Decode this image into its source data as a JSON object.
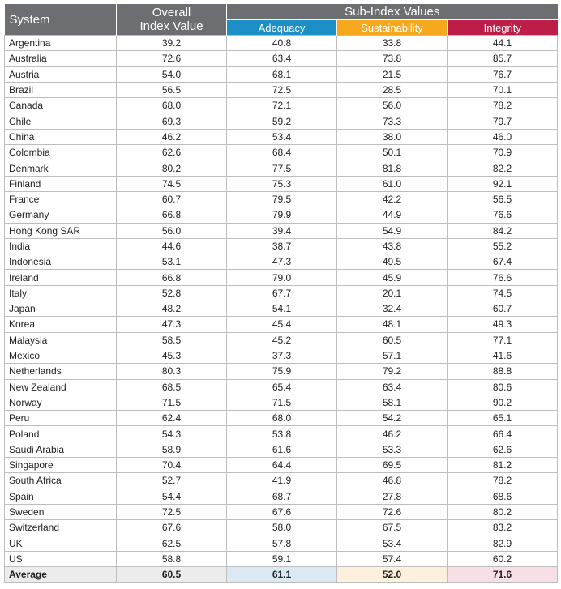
{
  "header": {
    "system": "System",
    "overall_line1": "Overall",
    "overall_line2": "Index Value",
    "subindex": "Sub-Index Values",
    "adequacy": "Adequacy",
    "sustainability": "Sustainability",
    "integrity": "Integrity"
  },
  "colors": {
    "header_gray": "#6d6e71",
    "adequacy": "#1b8fc6",
    "sustainability": "#f6a81c",
    "integrity": "#bd1e48"
  },
  "rows": [
    {
      "system": "Argentina",
      "overall": "39.2",
      "adequacy": "40.8",
      "sustainability": "33.8",
      "integrity": "44.1"
    },
    {
      "system": "Australia",
      "overall": "72.6",
      "adequacy": "63.4",
      "sustainability": "73.8",
      "integrity": "85.7"
    },
    {
      "system": "Austria",
      "overall": "54.0",
      "adequacy": "68.1",
      "sustainability": "21.5",
      "integrity": "76.7"
    },
    {
      "system": "Brazil",
      "overall": "56.5",
      "adequacy": "72.5",
      "sustainability": "28.5",
      "integrity": "70.1"
    },
    {
      "system": "Canada",
      "overall": "68.0",
      "adequacy": "72.1",
      "sustainability": "56.0",
      "integrity": "78.2"
    },
    {
      "system": "Chile",
      "overall": "69.3",
      "adequacy": "59.2",
      "sustainability": "73.3",
      "integrity": "79.7"
    },
    {
      "system": "China",
      "overall": "46.2",
      "adequacy": "53.4",
      "sustainability": "38.0",
      "integrity": "46.0"
    },
    {
      "system": "Colombia",
      "overall": "62.6",
      "adequacy": "68.4",
      "sustainability": "50.1",
      "integrity": "70.9"
    },
    {
      "system": "Denmark",
      "overall": "80.2",
      "adequacy": "77.5",
      "sustainability": "81.8",
      "integrity": "82.2"
    },
    {
      "system": "Finland",
      "overall": "74.5",
      "adequacy": "75.3",
      "sustainability": "61.0",
      "integrity": "92.1"
    },
    {
      "system": "France",
      "overall": "60.7",
      "adequacy": "79.5",
      "sustainability": "42.2",
      "integrity": "56.5"
    },
    {
      "system": "Germany",
      "overall": "66.8",
      "adequacy": "79.9",
      "sustainability": "44.9",
      "integrity": "76.6"
    },
    {
      "system": "Hong Kong SAR",
      "overall": "56.0",
      "adequacy": "39.4",
      "sustainability": "54.9",
      "integrity": "84.2"
    },
    {
      "system": "India",
      "overall": "44.6",
      "adequacy": "38.7",
      "sustainability": "43.8",
      "integrity": "55.2"
    },
    {
      "system": "Indonesia",
      "overall": "53.1",
      "adequacy": "47.3",
      "sustainability": "49.5",
      "integrity": "67.4"
    },
    {
      "system": "Ireland",
      "overall": "66.8",
      "adequacy": "79.0",
      "sustainability": "45.9",
      "integrity": "76.6"
    },
    {
      "system": "Italy",
      "overall": "52.8",
      "adequacy": "67.7",
      "sustainability": "20.1",
      "integrity": "74.5"
    },
    {
      "system": "Japan",
      "overall": "48.2",
      "adequacy": "54.1",
      "sustainability": "32.4",
      "integrity": "60.7"
    },
    {
      "system": "Korea",
      "overall": "47.3",
      "adequacy": "45.4",
      "sustainability": "48.1",
      "integrity": "49.3"
    },
    {
      "system": "Malaysia",
      "overall": "58.5",
      "adequacy": "45.2",
      "sustainability": "60.5",
      "integrity": "77.1"
    },
    {
      "system": "Mexico",
      "overall": "45.3",
      "adequacy": "37.3",
      "sustainability": "57.1",
      "integrity": "41.6"
    },
    {
      "system": "Netherlands",
      "overall": "80.3",
      "adequacy": "75.9",
      "sustainability": "79.2",
      "integrity": "88.8"
    },
    {
      "system": "New Zealand",
      "overall": "68.5",
      "adequacy": "65.4",
      "sustainability": "63.4",
      "integrity": "80.6"
    },
    {
      "system": "Norway",
      "overall": "71.5",
      "adequacy": "71.5",
      "sustainability": "58.1",
      "integrity": "90.2"
    },
    {
      "system": "Peru",
      "overall": "62.4",
      "adequacy": "68.0",
      "sustainability": "54.2",
      "integrity": "65.1"
    },
    {
      "system": "Poland",
      "overall": "54.3",
      "adequacy": "53.8",
      "sustainability": "46.2",
      "integrity": "66.4"
    },
    {
      "system": "Saudi Arabia",
      "overall": "58.9",
      "adequacy": "61.6",
      "sustainability": "53.3",
      "integrity": "62.6"
    },
    {
      "system": "Singapore",
      "overall": "70.4",
      "adequacy": "64.4",
      "sustainability": "69.5",
      "integrity": "81.2"
    },
    {
      "system": "South Africa",
      "overall": "52.7",
      "adequacy": "41.9",
      "sustainability": "46.8",
      "integrity": "78.2"
    },
    {
      "system": "Spain",
      "overall": "54.4",
      "adequacy": "68.7",
      "sustainability": "27.8",
      "integrity": "68.6"
    },
    {
      "system": "Sweden",
      "overall": "72.5",
      "adequacy": "67.6",
      "sustainability": "72.6",
      "integrity": "80.2"
    },
    {
      "system": "Switzerland",
      "overall": "67.6",
      "adequacy": "58.0",
      "sustainability": "67.5",
      "integrity": "83.2"
    },
    {
      "system": "UK",
      "overall": "62.5",
      "adequacy": "57.8",
      "sustainability": "53.4",
      "integrity": "82.9"
    },
    {
      "system": "US",
      "overall": "58.8",
      "adequacy": "59.1",
      "sustainability": "57.4",
      "integrity": "60.2"
    }
  ],
  "average": {
    "label": "Average",
    "overall": "60.5",
    "adequacy": "61.1",
    "sustainability": "52.0",
    "integrity": "71.6"
  }
}
